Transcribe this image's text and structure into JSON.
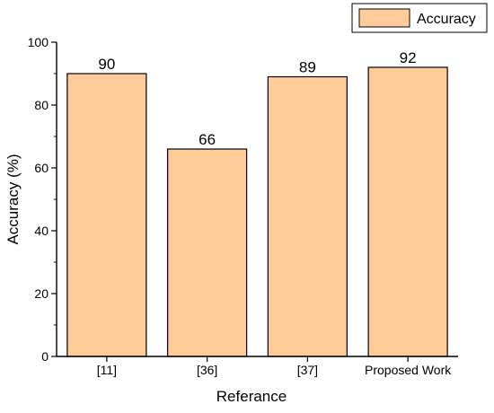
{
  "chart_data": {
    "type": "bar",
    "categories": [
      "[11]",
      "[36]",
      "[37]",
      "Proposed Work"
    ],
    "series": [
      {
        "name": "Accuracy",
        "values": [
          90,
          66,
          89,
          92
        ]
      }
    ],
    "data_labels": [
      "90",
      "66",
      "89",
      "92"
    ],
    "xlabel": "Referance",
    "ylabel": "Accuracy (%)",
    "ylim": [
      0,
      100
    ],
    "yticks": [
      0,
      20,
      40,
      60,
      80,
      100
    ],
    "grid": false,
    "legend_position": "top-right",
    "colors": {
      "bar_fill": "#FFCC99",
      "bar_stroke": "#000000",
      "axis": "#000000"
    }
  }
}
